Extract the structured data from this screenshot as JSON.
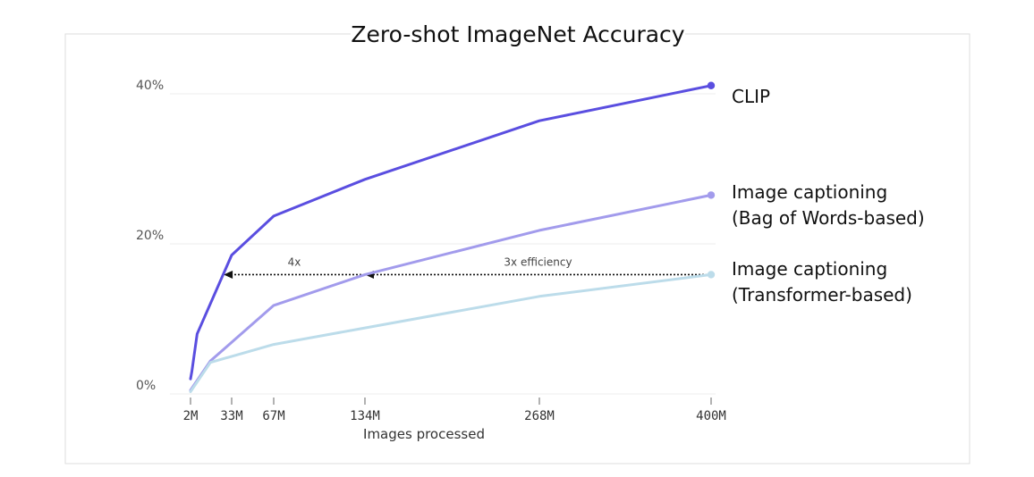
{
  "chart_data": {
    "type": "line",
    "title": "Zero-shot ImageNet Accuracy",
    "xlabel": "Images processed",
    "ylabel": "",
    "ylim": [
      0,
      40
    ],
    "grid": true,
    "x_ticks": [
      {
        "value": 2,
        "label": "2M"
      },
      {
        "value": 33,
        "label": "33M"
      },
      {
        "value": 67,
        "label": "67M"
      },
      {
        "value": 134,
        "label": "134M"
      },
      {
        "value": 268,
        "label": "268M"
      },
      {
        "value": 400,
        "label": "400M"
      }
    ],
    "y_ticks": [
      {
        "value": 0,
        "label": "0%"
      },
      {
        "value": 20,
        "label": "20%"
      },
      {
        "value": 40,
        "label": "40%"
      }
    ],
    "series": [
      {
        "name": "CLIP",
        "legend": [
          "CLIP"
        ],
        "color": "#5a4ee0",
        "points": [
          [
            2,
            2
          ],
          [
            3,
            3
          ],
          [
            7,
            8
          ],
          [
            33,
            18.5
          ],
          [
            67,
            23.7
          ],
          [
            134,
            28.6
          ],
          [
            268,
            36.4
          ],
          [
            400,
            41.1
          ]
        ]
      },
      {
        "name": "Image captioning (Bag of Words-based)",
        "legend": [
          "Image captioning",
          "(Bag of Words-based)"
        ],
        "color": "#a29bec",
        "points": [
          [
            2,
            0.5
          ],
          [
            17,
            4.4
          ],
          [
            67,
            11.8
          ],
          [
            134,
            15.9
          ],
          [
            268,
            21.8
          ],
          [
            400,
            26.5
          ]
        ]
      },
      {
        "name": "Image captioning (Transformer-based)",
        "legend": [
          "Image captioning",
          "(Transformer-based)"
        ],
        "color": "#bcdcea",
        "points": [
          [
            2,
            0.3
          ],
          [
            17,
            4.2
          ],
          [
            67,
            6.6
          ],
          [
            134,
            8.8
          ],
          [
            268,
            13
          ],
          [
            400,
            15.9
          ]
        ]
      }
    ],
    "annotations": [
      {
        "text": "4x",
        "from": [
          134,
          15.9
        ],
        "to": [
          27,
          15.9
        ]
      },
      {
        "text": "3x efficiency",
        "from": [
          400,
          15.9
        ],
        "to": [
          134,
          15.9
        ]
      }
    ]
  }
}
